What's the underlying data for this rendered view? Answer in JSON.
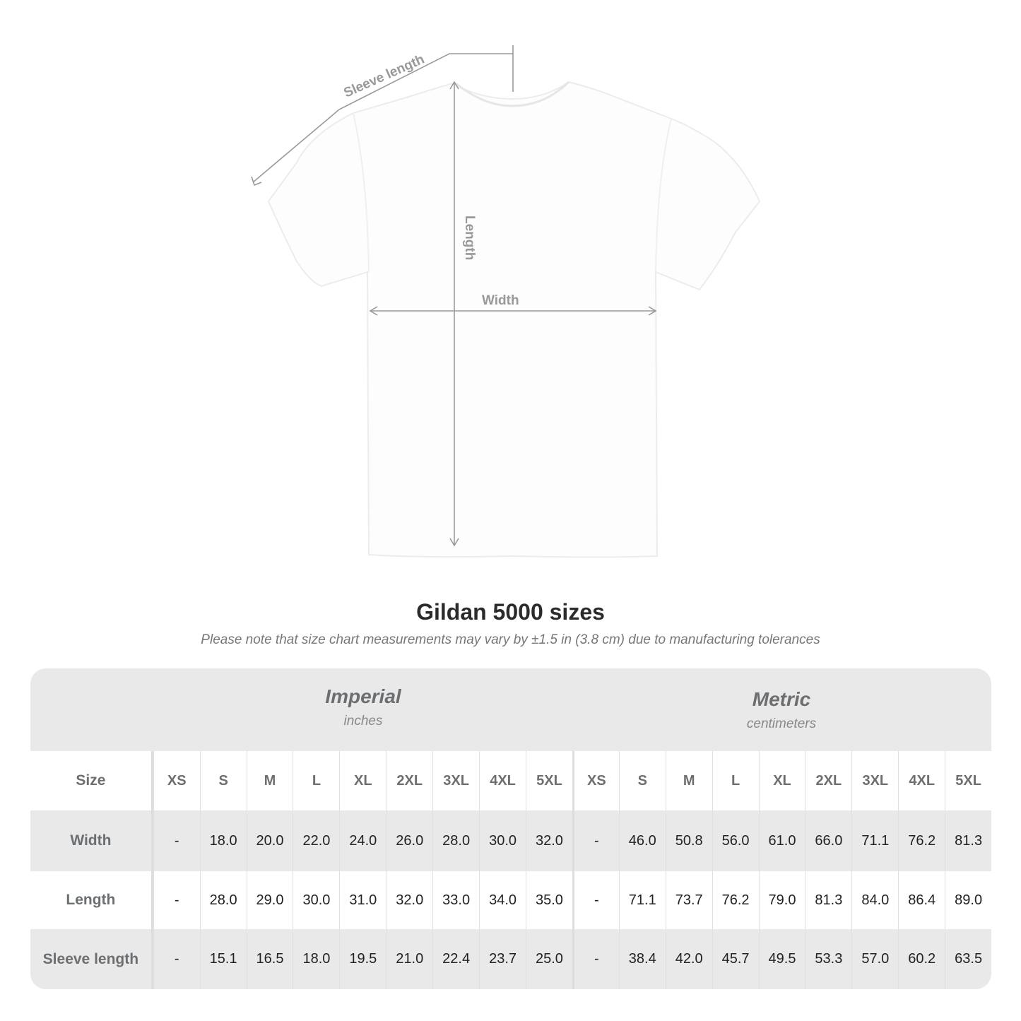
{
  "diagram": {
    "labels": {
      "sleeve": "Sleeve length",
      "length": "Length",
      "width": "Width"
    },
    "line_color": "#999999"
  },
  "title": "Gildan 5000 sizes",
  "note": "Please note that size chart measurements may vary by ±1.5 in (3.8 cm) due to manufacturing tolerances",
  "table": {
    "imperial": {
      "name": "Imperial",
      "unit": "inches"
    },
    "metric": {
      "name": "Metric",
      "unit": "centimeters"
    },
    "size_label": "Size",
    "sizes": [
      "XS",
      "S",
      "M",
      "L",
      "XL",
      "2XL",
      "3XL",
      "4XL",
      "5XL"
    ],
    "rows": [
      {
        "label": "Width",
        "imperial": [
          "-",
          "18.0",
          "20.0",
          "22.0",
          "24.0",
          "26.0",
          "28.0",
          "30.0",
          "32.0"
        ],
        "metric": [
          "-",
          "46.0",
          "50.8",
          "56.0",
          "61.0",
          "66.0",
          "71.1",
          "76.2",
          "81.3"
        ]
      },
      {
        "label": "Length",
        "imperial": [
          "-",
          "28.0",
          "29.0",
          "30.0",
          "31.0",
          "32.0",
          "33.0",
          "34.0",
          "35.0"
        ],
        "metric": [
          "-",
          "71.1",
          "73.7",
          "76.2",
          "79.0",
          "81.3",
          "84.0",
          "86.4",
          "89.0"
        ]
      },
      {
        "label": "Sleeve length",
        "imperial": [
          "-",
          "15.1",
          "16.5",
          "18.0",
          "19.5",
          "21.0",
          "22.4",
          "23.7",
          "25.0"
        ],
        "metric": [
          "-",
          "38.4",
          "42.0",
          "45.7",
          "49.5",
          "53.3",
          "57.0",
          "60.2",
          "63.5"
        ]
      }
    ]
  }
}
